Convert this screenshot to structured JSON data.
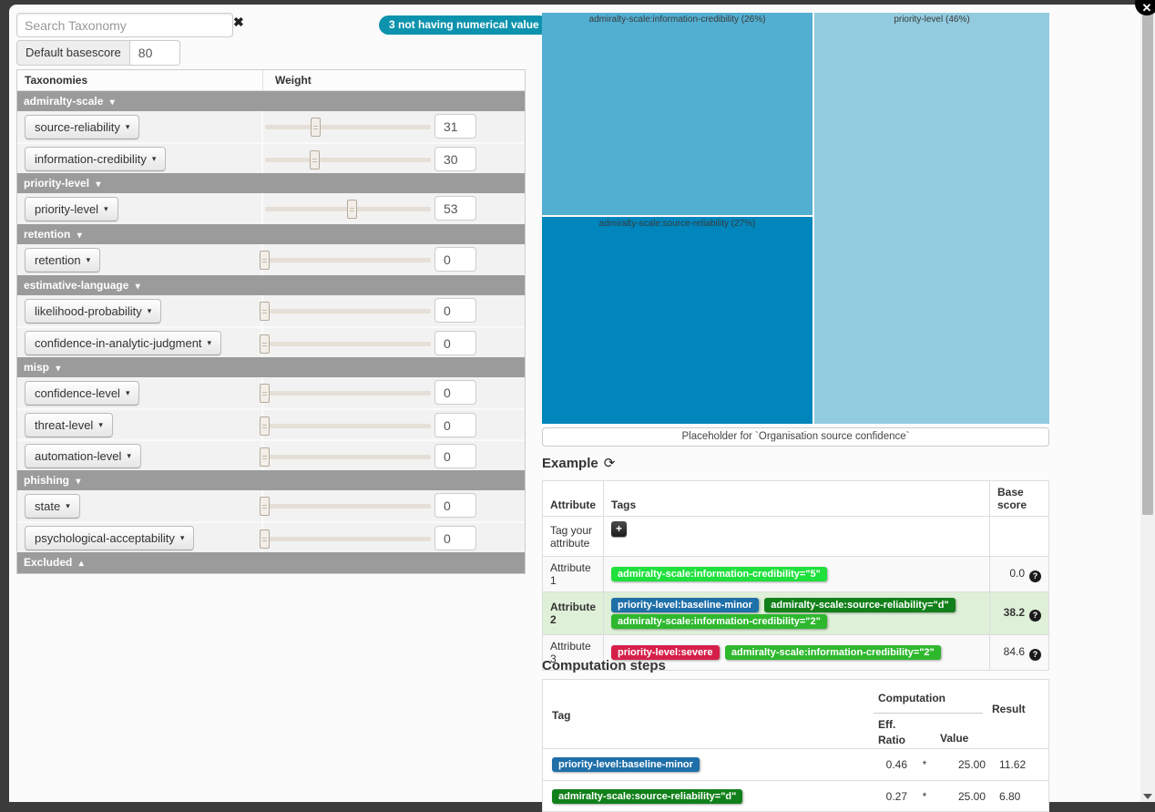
{
  "window": {
    "close_icon": "✕"
  },
  "icons": {
    "clear": "✖",
    "caret_down": "▾",
    "caret_up": "▴",
    "refresh": "⟳",
    "plus": "+",
    "question": "?"
  },
  "colors": {
    "badge": "#0e93ae",
    "group_header": "#9b9b9b",
    "highlight_row": "#dff0d8"
  },
  "left_panel": {
    "search_placeholder": "Search Taxonomy",
    "badge_label": "3 not having numerical value",
    "basescore_label": "Default basescore",
    "basescore_value": "80",
    "col_taxonomies": "Taxonomies",
    "col_weight": "Weight",
    "groups": [
      {
        "label": "admiralty-scale",
        "items": [
          {
            "label": "source-reliability",
            "value": 31
          },
          {
            "label": "information-credibility",
            "value": 30
          }
        ]
      },
      {
        "label": "priority-level",
        "items": [
          {
            "label": "priority-level",
            "value": 53
          }
        ]
      },
      {
        "label": "retention",
        "items": [
          {
            "label": "retention",
            "value": 0
          }
        ]
      },
      {
        "label": "estimative-language",
        "items": [
          {
            "label": "likelihood-probability",
            "value": 0
          },
          {
            "label": "confidence-in-analytic-judgment",
            "value": 0
          }
        ]
      },
      {
        "label": "misp",
        "items": [
          {
            "label": "confidence-level",
            "value": 0
          },
          {
            "label": "threat-level",
            "value": 0
          },
          {
            "label": "automation-level",
            "value": 0
          }
        ]
      },
      {
        "label": "phishing",
        "items": [
          {
            "label": "state",
            "value": 0
          },
          {
            "label": "psychological-acceptability",
            "value": 0
          }
        ]
      }
    ],
    "excluded_label": "Excluded"
  },
  "chart_data": {
    "type": "treemap",
    "nodes": [
      {
        "label": "admiralty-scale:information-credibility",
        "percent": 26,
        "display": "admiralty-scale:information-credibility (26%)",
        "color": "#52afd2"
      },
      {
        "label": "admiralty-scale:source-reliability",
        "percent": 27,
        "display": "admiralty-scale:source-reliability (27%)",
        "color": "#0085bc"
      },
      {
        "label": "priority-level",
        "percent": 46,
        "display": "priority-level (46%)",
        "color": "#92cbdf"
      }
    ]
  },
  "right_panel": {
    "placeholder_text": "Placeholder for `Organisation source confidence`",
    "example": {
      "title": "Example",
      "headers": {
        "attribute": "Attribute",
        "tags": "Tags",
        "score": "Base score"
      },
      "tag_row_label": "Tag your attribute",
      "rows": [
        {
          "attribute": "Attribute 1",
          "score": "0.0",
          "tags": [
            {
              "label": "admiralty-scale:information-credibility=\"5\"",
              "color": "#1fe03c"
            }
          ]
        },
        {
          "attribute": "Attribute 2",
          "score": "38.2",
          "tags": [
            {
              "label": "priority-level:baseline-minor",
              "color": "#1f6fa8"
            },
            {
              "label": "admiralty-scale:source-reliability=\"d\"",
              "color": "#12801a"
            },
            {
              "label": "admiralty-scale:information-credibility=\"2\"",
              "color": "#2eb82e"
            }
          ]
        },
        {
          "attribute": "Attribute 3",
          "score": "84.6",
          "tags": [
            {
              "label": "priority-level:severe",
              "color": "#d6204a"
            },
            {
              "label": "admiralty-scale:information-credibility=\"2\"",
              "color": "#2eb82e"
            }
          ]
        }
      ]
    },
    "computation": {
      "title": "Computation steps",
      "headers": {
        "tag": "Tag",
        "computation": "Computation",
        "eff_ratio": "Eff. Ratio",
        "value": "Value",
        "result": "Result"
      },
      "rows": [
        {
          "tag": "priority-level:baseline-minor",
          "color": "#1f6fa8",
          "eff_ratio": "0.46",
          "op": "*",
          "value": "25.00",
          "result": "11.62"
        },
        {
          "tag": "admiralty-scale:source-reliability=\"d\"",
          "color": "#12801a",
          "eff_ratio": "0.27",
          "op": "*",
          "value": "25.00",
          "result": "6.80"
        }
      ]
    }
  }
}
